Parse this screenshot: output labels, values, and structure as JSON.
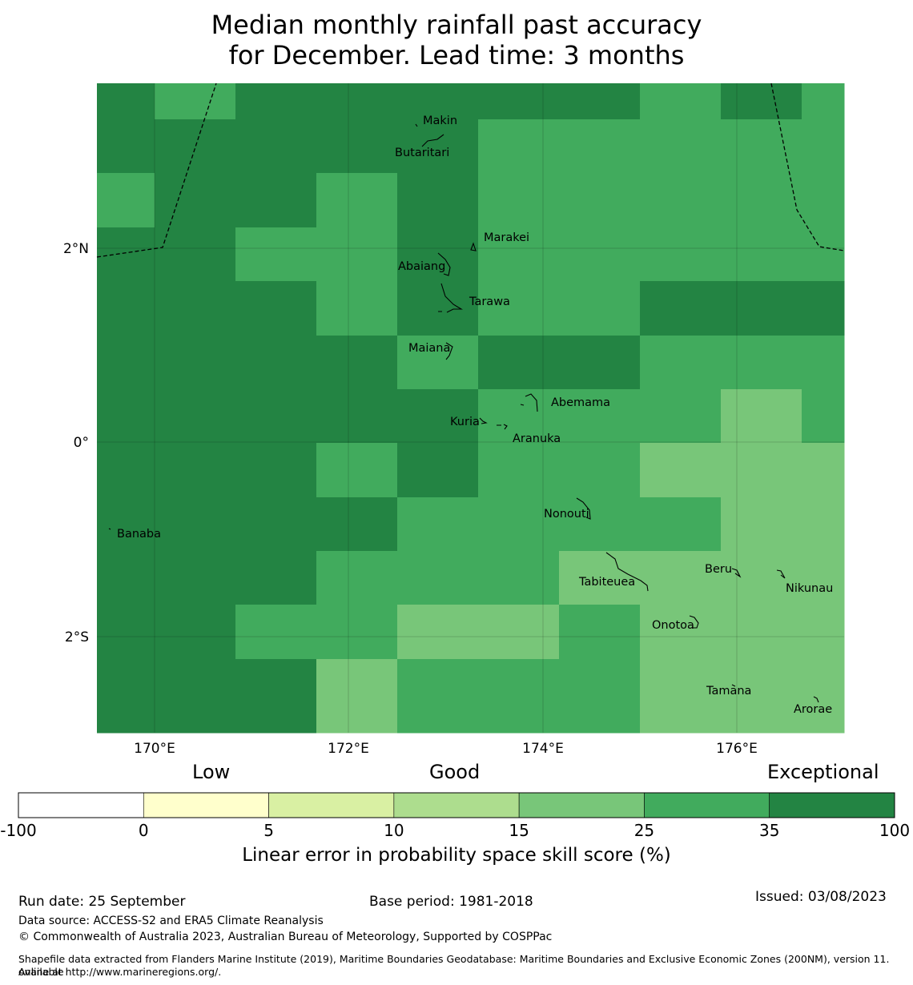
{
  "title_line1": "Median monthly rainfall past accuracy",
  "title_line2": "for December. Lead time: 3 months",
  "colors": {
    "exceptional": "#238443",
    "strong": "#41ab5d",
    "good": "#78c679",
    "moderate": "#addd8e",
    "fair": "#d9f0a3",
    "low": "#ffffcc",
    "none": "#ffffff"
  },
  "map": {
    "lon_labels": [
      "170°E",
      "172°E",
      "174°E",
      "176°E"
    ],
    "lat_labels": [
      "2°N",
      "0°",
      "2°S"
    ],
    "grid": [
      [
        "E",
        "S",
        "E",
        "E",
        "E",
        "E",
        "E",
        "S",
        "E",
        "S"
      ],
      [
        "E",
        "E",
        "E",
        "E",
        "E",
        "S",
        "S",
        "S",
        "S",
        "S"
      ],
      [
        "S",
        "E",
        "E",
        "S",
        "E",
        "S",
        "S",
        "S",
        "S",
        "S"
      ],
      [
        "E",
        "E",
        "S",
        "S",
        "E",
        "S",
        "S",
        "S",
        "S",
        "S"
      ],
      [
        "E",
        "E",
        "E",
        "S",
        "E",
        "S",
        "S",
        "E",
        "E",
        "E"
      ],
      [
        "E",
        "E",
        "E",
        "E",
        "S",
        "E",
        "E",
        "S",
        "S",
        "S"
      ],
      [
        "E",
        "E",
        "E",
        "E",
        "E",
        "S",
        "S",
        "S",
        "G",
        "S"
      ],
      [
        "E",
        "E",
        "E",
        "S",
        "E",
        "S",
        "S",
        "G",
        "G",
        "G"
      ],
      [
        "E",
        "E",
        "E",
        "E",
        "S",
        "S",
        "S",
        "S",
        "G",
        "G"
      ],
      [
        "E",
        "E",
        "E",
        "S",
        "S",
        "S",
        "G",
        "G",
        "G",
        "G"
      ],
      [
        "E",
        "E",
        "S",
        "S",
        "G",
        "G",
        "S",
        "G",
        "G",
        "G"
      ],
      [
        "E",
        "E",
        "E",
        "G",
        "S",
        "S",
        "S",
        "G",
        "G",
        "G"
      ]
    ],
    "places": {
      "makin": "Makin",
      "butaritari": "Butaritari",
      "marakei": "Marakei",
      "abaiang": "Abaiang",
      "tarawa": "Tarawa",
      "maiana": "Maiana",
      "abemama": "Abemama",
      "kuria": "Kuria",
      "aranuka": "Aranuka",
      "banaba": "Banaba",
      "nonouti": "Nonouti",
      "beru": "Beru",
      "tabiteuea": "Tabiteuea",
      "nikunau": "Nikunau",
      "onotoa": "Onotoa",
      "tamana": "Tamana",
      "arorae": "Arorae"
    }
  },
  "colorbar": {
    "category_labels": {
      "low": "Low",
      "good": "Good",
      "exceptional": "Exceptional"
    },
    "bins": [
      {
        "from": "-100",
        "to": "0",
        "color": "#ffffff"
      },
      {
        "from": "0",
        "to": "5",
        "color": "#ffffcc"
      },
      {
        "from": "5",
        "to": "10",
        "color": "#d9f0a3"
      },
      {
        "from": "10",
        "to": "15",
        "color": "#addd8e"
      },
      {
        "from": "15",
        "to": "25",
        "color": "#78c679"
      },
      {
        "from": "25",
        "to": "35",
        "color": "#41ab5d"
      },
      {
        "from": "35",
        "to": "100",
        "color": "#238443"
      }
    ],
    "ticks": [
      "-100",
      "0",
      "5",
      "10",
      "15",
      "25",
      "35",
      "100"
    ],
    "title": "Linear error in probability space skill score (%)"
  },
  "footer": {
    "run_date": "Run date: 25 September",
    "base_period": "Base period: 1981-2018",
    "issued": "Issued: 03/08/2023",
    "data_source": "Data source: ACCESS-S2 and ERA5 Climate Reanalysis",
    "copyright": "© Commonwealth of Australia 2023, Australian Bureau of Meteorology, Supported by COSPPac",
    "shapefile_line1": "Shapefile data extracted from Flanders Marine Institute (2019), Maritime Boundaries Geodatabase: Maritime Boundaries and Exclusive Economic Zones (200NM), version 11. Available",
    "shapefile_line2": "online at http://www.marineregions.org/."
  }
}
